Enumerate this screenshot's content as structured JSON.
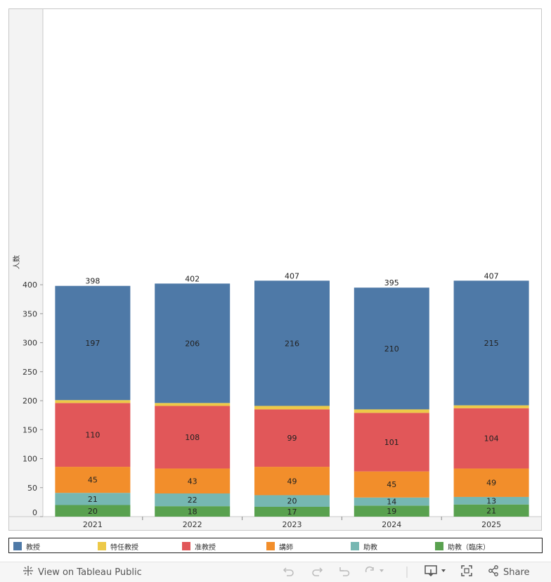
{
  "chart_data": {
    "type": "bar",
    "stacked": true,
    "ylabel": "人数",
    "xlabel": "",
    "ylim": [
      0,
      430
    ],
    "yticks": [
      0,
      50,
      100,
      150,
      200,
      250,
      300,
      350,
      400
    ],
    "categories": [
      "2021",
      "2022",
      "2023",
      "2024",
      "2025"
    ],
    "totals": [
      398,
      402,
      407,
      395,
      407
    ],
    "series": [
      {
        "name": "助教（臨床）",
        "color": "#59a14f",
        "values": [
          20,
          18,
          17,
          19,
          21
        ]
      },
      {
        "name": "助教",
        "color": "#76b7b2",
        "values": [
          21,
          22,
          20,
          14,
          13
        ]
      },
      {
        "name": "講師",
        "color": "#f28e2b",
        "values": [
          45,
          43,
          49,
          45,
          49
        ]
      },
      {
        "name": "准教授",
        "color": "#e15759",
        "values": [
          110,
          108,
          99,
          101,
          104
        ]
      },
      {
        "name": "特任教授",
        "color": "#edc948",
        "values": [
          5,
          5,
          6,
          6,
          5
        ]
      },
      {
        "name": "教授",
        "color": "#4e79a7",
        "values": [
          197,
          206,
          216,
          210,
          215
        ]
      }
    ],
    "labeled_series": [
      "助教（臨床）",
      "助教",
      "講師",
      "准教授",
      "教授"
    ],
    "grid": false
  },
  "legend": {
    "items": [
      {
        "label": "教授",
        "color": "#4e79a7"
      },
      {
        "label": "特任教授",
        "color": "#edc948"
      },
      {
        "label": "准教授",
        "color": "#e15759"
      },
      {
        "label": "講師",
        "color": "#f28e2b"
      },
      {
        "label": "助教",
        "color": "#76b7b2"
      },
      {
        "label": "助教（臨床）",
        "color": "#59a14f"
      }
    ]
  },
  "toolbar": {
    "view_label": "View on Tableau Public",
    "share_label": "Share",
    "icons": [
      "tableau-logo-icon",
      "undo-icon",
      "redo-icon",
      "revert-icon",
      "refresh-icon",
      "download-icon",
      "fullscreen-icon",
      "share-icon"
    ]
  }
}
